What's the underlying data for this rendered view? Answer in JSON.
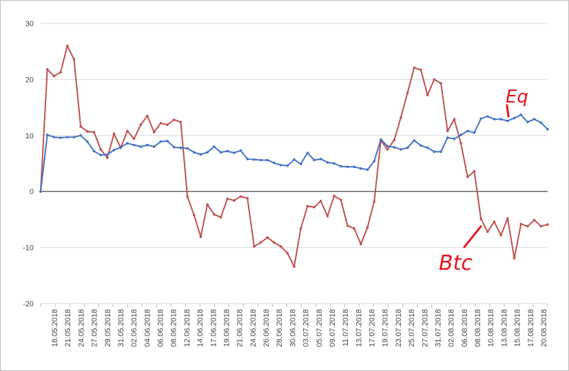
{
  "chart_data": {
    "type": "line",
    "title": "",
    "xlabel": "",
    "ylabel": "",
    "ylim": [
      -20,
      30
    ],
    "yticks": [
      30,
      20,
      10,
      0,
      -10,
      -20
    ],
    "grid": true,
    "legend": "none",
    "x_tick_labels": [
      "18.05.2018",
      "21.05.2018",
      "24.05.2018",
      "27.05.2018",
      "29.05.2018",
      "31.05.2018",
      "02.06.2018",
      "04.06.2018",
      "06.06.2018",
      "08.06.2018",
      "12.06.2018",
      "14.06.2018",
      "17.06.2018",
      "19.06.2018",
      "21.06.2018",
      "24.06.2018",
      "26.06.2018",
      "28.06.2018",
      "30.06.2018",
      "03.07.2018",
      "05.07.2018",
      "09.07.2018",
      "11.07.2018",
      "13.07.2018",
      "17.07.2018",
      "19.07.2018",
      "23.07.2018",
      "25.07.2018",
      "27.07.2018",
      "31.07.2018",
      "02.08.2018",
      "06.08.2018",
      "08.08.2018",
      "10.08.2018",
      "13.08.2018",
      "15.08.2018",
      "17.08.2018",
      "20.08.2018"
    ],
    "series": [
      {
        "color": "#c0504d",
        "values": [
          0,
          21.8,
          20.6,
          21.3,
          26,
          23.6,
          11.6,
          10.7,
          10.6,
          7.5,
          6,
          10.3,
          7.8,
          10.8,
          9.4,
          11.9,
          13.5,
          10.6,
          12.2,
          11.9,
          12.8,
          12.4,
          -0.9,
          -4.2,
          -8.1,
          -2.3,
          -4.1,
          -4.6,
          -1.3,
          -1.6,
          -0.9,
          -1.2,
          -9.8,
          -9.1,
          -8.2,
          -9.1,
          -9.8,
          -11,
          -13.4,
          -6.6,
          -2.6,
          -2.8,
          -1.7,
          -4.4,
          -0.8,
          -1.5,
          -6.1,
          -6.6,
          -9.4,
          -6.4,
          -1.8,
          9.1,
          7.5,
          9.2,
          13.2,
          17.6,
          22.1,
          21.7,
          17.2,
          20,
          19.3,
          10.8,
          12.9,
          8.6,
          2.6,
          3.6,
          -4.9,
          -7.2,
          -5.4,
          -7.8,
          -4.8,
          -11.9,
          -5.8,
          -6.2,
          -5.1,
          -6.2,
          -5.9
        ]
      },
      {
        "color": "#4472c4",
        "values": [
          0,
          10.1,
          9.7,
          9.6,
          9.7,
          9.7,
          10,
          8.9,
          7.2,
          6.5,
          6.6,
          7.4,
          7.9,
          8.6,
          8.3,
          8,
          8.3,
          8,
          8.9,
          9,
          7.9,
          7.8,
          7.7,
          7,
          6.6,
          7,
          8,
          7,
          7.2,
          6.9,
          7.3,
          5.8,
          5.7,
          5.6,
          5.6,
          5.1,
          4.7,
          4.6,
          5.7,
          4.9,
          6.9,
          5.6,
          5.8,
          5.2,
          5,
          4.5,
          4.4,
          4.4,
          4.1,
          3.9,
          5.4,
          9.3,
          8.1,
          7.9,
          7.5,
          7.8,
          9.1,
          8.2,
          7.8,
          7.1,
          7.1,
          9.6,
          9.4,
          10.1,
          10.8,
          10.5,
          13,
          13.4,
          12.9,
          12.9,
          12.6,
          13.1,
          13.7,
          12.4,
          12.9,
          12.3,
          11.1
        ]
      }
    ]
  },
  "annotations": [
    {
      "text": "Eq",
      "color": "#e8141c"
    },
    {
      "text": "Btc",
      "color": "#e8141c"
    }
  ]
}
